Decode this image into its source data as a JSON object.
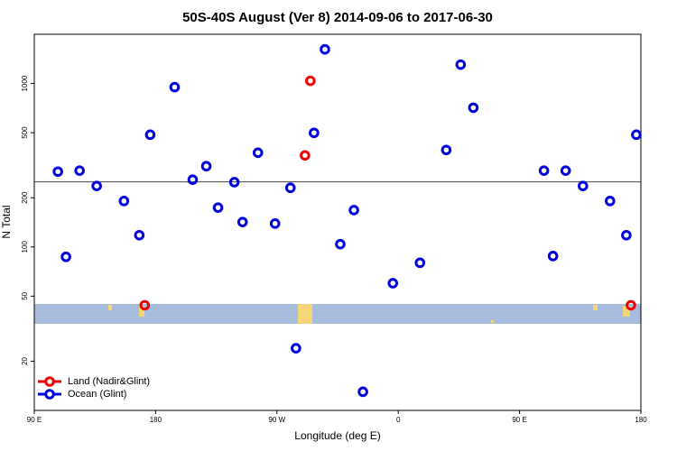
{
  "chart_data": {
    "type": "scatter",
    "title": "50S-40S August (Ver 8)   2014-09-06 to 2017-06-30",
    "x_label": "Longitude (deg E)",
    "y_label": "N Total",
    "xlim": [
      90,
      540
    ],
    "ylim": [
      10,
      2000
    ],
    "y_log": true,
    "xticks": [
      {
        "value": 90,
        "label": "90 E"
      },
      180,
      {
        "value": 270,
        "label": "90 W"
      },
      {
        "value": 360,
        "label": "0"
      },
      {
        "value": 450,
        "label": "90 E"
      },
      {
        "value": 540,
        "label": "180"
      }
    ],
    "yticks": [
      20,
      50,
      100,
      200,
      500,
      1000
    ],
    "reference_line": 250,
    "legend": "bottom-left",
    "series": [
      {
        "name": "Land (Nadir&Glint)",
        "color": "#ee0000",
        "x": [
          171.9,
          294.8,
          290.8,
          532.6
        ],
        "values": [
          44,
          1038,
          363,
          44
        ]
      },
      {
        "name": "Ocean (Glint)",
        "color": "#0000dd",
        "x": [
          107.5,
          113.5,
          123.6,
          136.3,
          156.5,
          167.9,
          176,
          194.1,
          207.5,
          217.6,
          226.3,
          238.4,
          244.5,
          255.9,
          268.6,
          280,
          284.1,
          297.5,
          305.6,
          317,
          327.1,
          333.8,
          356,
          376.1,
          395.6,
          406.3,
          415.7,
          468.1,
          474.8,
          484.2,
          497,
          517.1,
          529.2,
          536.6
        ],
        "values": [
          289,
          87,
          293,
          236,
          191,
          118,
          486,
          950,
          258,
          312,
          174,
          249,
          142,
          377,
          139,
          230,
          24,
          499,
          1617,
          104,
          168,
          13,
          60,
          80,
          392,
          1304,
          711,
          293,
          88,
          293,
          236,
          191,
          118,
          486
        ]
      }
    ]
  }
}
